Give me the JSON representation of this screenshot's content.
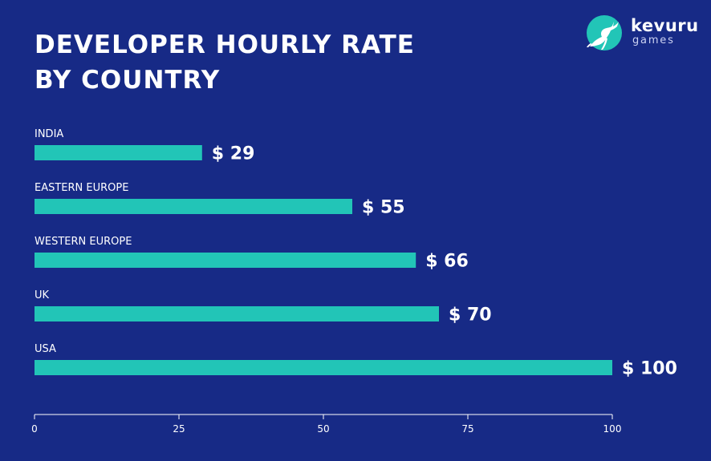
{
  "brand": {
    "name": "kevuru",
    "sub": "games",
    "logo_icon": "deer-icon",
    "logo_color": "#22c5b7"
  },
  "chart_data": {
    "type": "bar",
    "orientation": "horizontal",
    "title": "DEVELOPER HOURLY RATE BY COUNTRY",
    "title_lines": [
      "DEVELOPER HOURLY RATE",
      "BY COUNTRY"
    ],
    "categories": [
      "INDIA",
      "EASTERN EUROPE",
      "WESTERN EUROPE",
      "UK",
      "USA"
    ],
    "values": [
      29,
      55,
      66,
      70,
      100
    ],
    "data_labels": [
      "$ 29",
      "$ 55",
      "$ 66",
      "$ 70",
      "$ 100"
    ],
    "xlim": [
      0,
      100
    ],
    "x_ticks": [
      0,
      25,
      50,
      75,
      100
    ],
    "x_tick_labels": [
      "0",
      "25",
      "50",
      "75",
      "100"
    ],
    "grid": false,
    "legend": "none",
    "bar_color": "#22c5b7",
    "background_color": "#172a86",
    "text_color": "#ffffff"
  }
}
